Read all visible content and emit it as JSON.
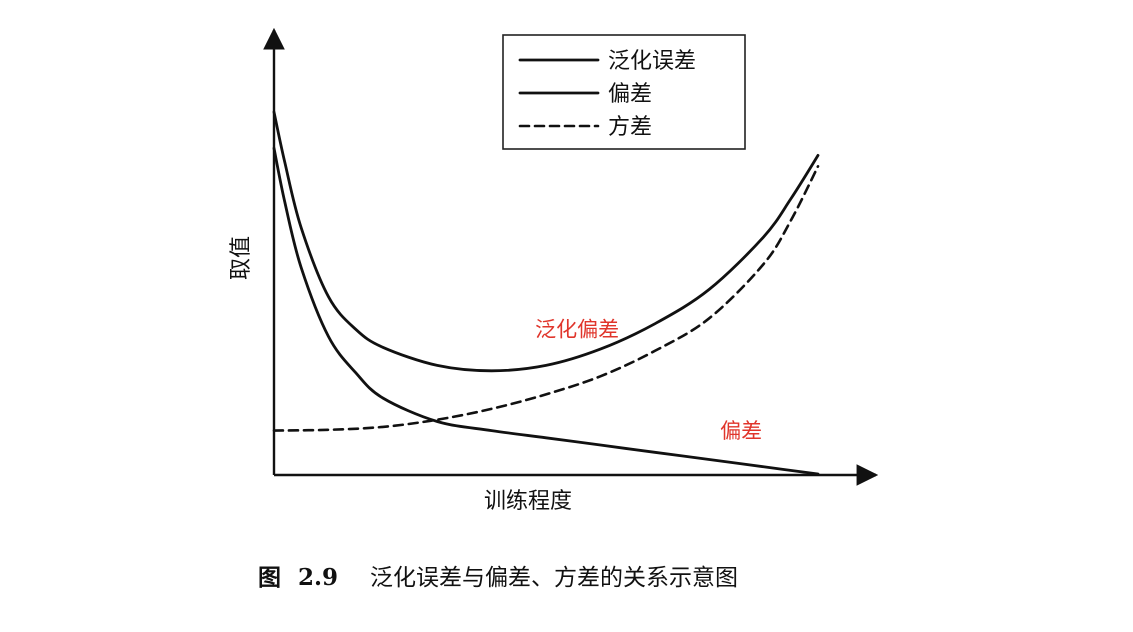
{
  "chart_data": {
    "type": "line",
    "xlabel": "训练程度",
    "ylabel": "取值",
    "grid": false,
    "legend_placement": "top-center",
    "x_range": [
      0,
      1
    ],
    "y_range": [
      0,
      1
    ],
    "series": [
      {
        "name": "泛化误差",
        "style": "solid",
        "x": [
          0.0,
          0.02,
          0.05,
          0.1,
          0.15,
          0.2,
          0.3,
          0.4,
          0.5,
          0.6,
          0.7,
          0.8,
          0.9,
          0.95,
          1.0
        ],
        "y": [
          1.0,
          0.86,
          0.68,
          0.49,
          0.4,
          0.35,
          0.3,
          0.285,
          0.3,
          0.345,
          0.415,
          0.51,
          0.655,
          0.76,
          0.88
        ]
      },
      {
        "name": "偏差",
        "style": "solid",
        "x": [
          0.0,
          0.02,
          0.05,
          0.1,
          0.15,
          0.2,
          0.3,
          0.4,
          0.5,
          0.6,
          0.7,
          0.8,
          0.9,
          1.0
        ],
        "y": [
          0.9,
          0.75,
          0.57,
          0.38,
          0.28,
          0.21,
          0.145,
          0.12,
          0.1,
          0.08,
          0.06,
          0.04,
          0.02,
          0.0
        ]
      },
      {
        "name": "方差",
        "style": "dashed",
        "x": [
          0.0,
          0.1,
          0.2,
          0.3,
          0.4,
          0.5,
          0.6,
          0.7,
          0.8,
          0.9,
          0.95,
          1.0
        ],
        "y": [
          0.12,
          0.122,
          0.13,
          0.15,
          0.18,
          0.22,
          0.27,
          0.34,
          0.43,
          0.58,
          0.7,
          0.85
        ]
      }
    ],
    "annotations": [
      {
        "text": "泛化偏差",
        "x": 0.48,
        "y": 0.38,
        "color": "#e0352b"
      },
      {
        "text": "偏差",
        "x": 0.82,
        "y": 0.1,
        "color": "#e0352b"
      }
    ]
  },
  "caption": {
    "prefix": "图",
    "number": "2.9",
    "text": "泛化误差与偏差、方差的关系示意图"
  }
}
